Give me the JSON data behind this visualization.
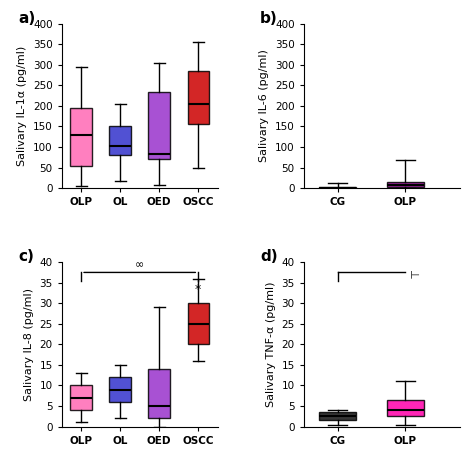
{
  "subplots": {
    "a": {
      "label": "a)",
      "ylabel": "Salivary IL-1α (pg/ml)",
      "ylim": [
        0,
        400
      ],
      "yticks": [
        0,
        50,
        100,
        150,
        200,
        250,
        300,
        350,
        400
      ],
      "groups": [
        "OLP",
        "OL",
        "OED",
        "OSCC"
      ],
      "colors": [
        "#FF69B4",
        "#3333CC",
        "#9933CC",
        "#CC0000"
      ],
      "boxes": [
        {
          "q1": 55,
          "median": 130,
          "q3": 195,
          "whislo": 5,
          "whishi": 295
        },
        {
          "q1": 80,
          "median": 103,
          "q3": 150,
          "whislo": 18,
          "whishi": 205
        },
        {
          "q1": 70,
          "median": 82,
          "q3": 235,
          "whislo": 8,
          "whishi": 305
        },
        {
          "q1": 155,
          "median": 205,
          "q3": 285,
          "whislo": 48,
          "whishi": 355
        }
      ],
      "show_label": true,
      "xlim": [
        -0.5,
        3.5
      ],
      "left_crop": true
    },
    "b": {
      "label": "b)",
      "ylabel": "Salivary IL-6 (pg/ml)",
      "ylim": [
        0,
        400
      ],
      "yticks": [
        0,
        50,
        100,
        150,
        200,
        250,
        300,
        350,
        400
      ],
      "groups": [
        "CG",
        "OLP"
      ],
      "colors": [
        "#000000",
        "#880088"
      ],
      "boxes": [
        {
          "q1": 0.5,
          "median": 1.5,
          "q3": 4,
          "whislo": 0,
          "whishi": 12
        },
        {
          "q1": 3,
          "median": 8,
          "q3": 15,
          "whislo": 0,
          "whishi": 68
        }
      ],
      "show_label": true,
      "xlim": [
        -0.5,
        1.8
      ],
      "right_crop": true
    },
    "c": {
      "label": "c)",
      "ylabel": "Salivary IL-8 (pg/ml)",
      "ylim": [
        0,
        40
      ],
      "yticks": [
        0,
        5,
        10,
        15,
        20,
        25,
        30,
        35,
        40
      ],
      "groups": [
        "OLP",
        "OL",
        "OED",
        "OSCC"
      ],
      "colors": [
        "#FF69B4",
        "#3333CC",
        "#9933CC",
        "#CC0000"
      ],
      "sig_bracket": true,
      "boxes": [
        {
          "q1": 4,
          "median": 7,
          "q3": 10,
          "whislo": 1,
          "whishi": 13
        },
        {
          "q1": 6,
          "median": 9,
          "q3": 12,
          "whislo": 2,
          "whishi": 15
        },
        {
          "q1": 2,
          "median": 5,
          "q3": 14,
          "whislo": 0,
          "whishi": 29
        },
        {
          "q1": 20,
          "median": 25,
          "q3": 30,
          "whislo": 16,
          "whishi": 36
        }
      ],
      "xlim": [
        -0.5,
        3.5
      ],
      "left_crop": true
    },
    "d": {
      "label": "d)",
      "ylabel": "Salivary TNF-α (pg/ml)",
      "ylim": [
        0,
        40
      ],
      "yticks": [
        0,
        5,
        10,
        15,
        20,
        25,
        30,
        35,
        40
      ],
      "groups": [
        "CG",
        "OLP"
      ],
      "colors": [
        "#111111",
        "#FF00AA"
      ],
      "sig_bracket_line": true,
      "boxes": [
        {
          "q1": 1.5,
          "median": 2.5,
          "q3": 3.5,
          "whislo": 0.5,
          "whishi": 4
        },
        {
          "q1": 2.5,
          "median": 4.0,
          "q3": 6.5,
          "whislo": 0.5,
          "whishi": 11
        }
      ],
      "xlim": [
        -0.5,
        1.8
      ],
      "right_crop": true
    }
  },
  "background_color": "#ffffff",
  "label_fontsize": 11,
  "tick_fontsize": 7.5,
  "axis_label_fontsize": 8
}
